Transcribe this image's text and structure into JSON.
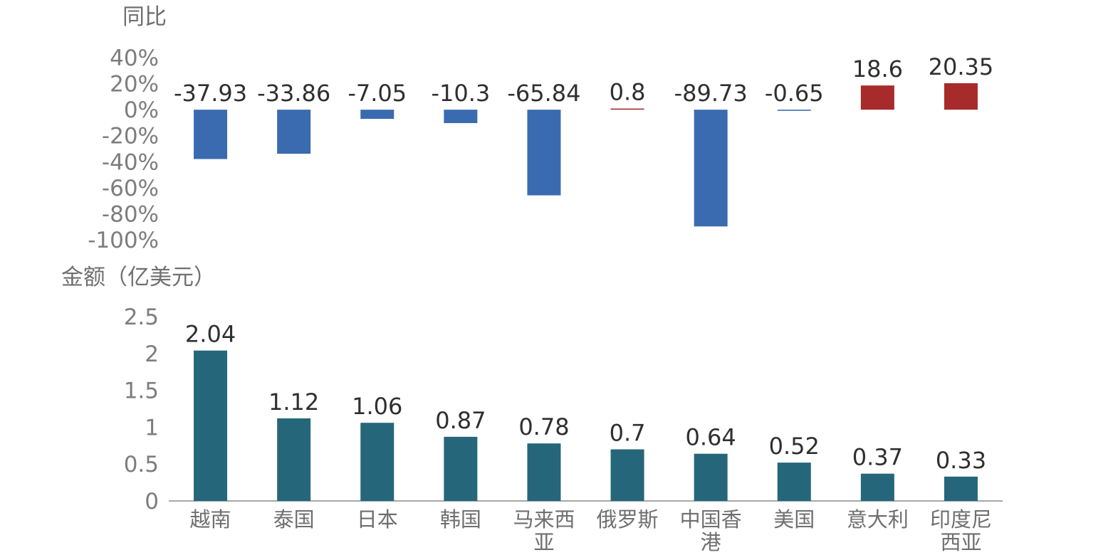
{
  "chart_data": [
    {
      "type": "bar",
      "ylabel": "同比",
      "categories": [
        "越南",
        "泰国",
        "日本",
        "韩国",
        "马来西亚",
        "俄罗斯",
        "中国香港",
        "美国",
        "意大利",
        "印度尼西亚"
      ],
      "values": [
        -37.93,
        -33.86,
        -7.05,
        -10.3,
        -65.84,
        0.8,
        -89.73,
        -0.65,
        18.6,
        20.35
      ],
      "data_labels": [
        "-37.93",
        "-33.86",
        "-7.05",
        "-10.3",
        "-65.84",
        "0.8",
        "-89.73",
        "-0.65",
        "18.6",
        "20.35"
      ],
      "yticks": [
        "40%",
        "20%",
        "0%",
        "-20%",
        "-40%",
        "-60%",
        "-80%",
        "-100%"
      ],
      "ylim": [
        -100,
        40
      ],
      "positive_color": "#a82b2b",
      "negative_color": "#3a6bb0",
      "grid": false
    },
    {
      "type": "bar",
      "ylabel": "金额（亿美元）",
      "categories": [
        "越南",
        "泰国",
        "日本",
        "韩国",
        "马来西亚",
        "俄罗斯",
        "中国香港",
        "美国",
        "意大利",
        "印度尼西亚"
      ],
      "category_lines": [
        [
          "越南"
        ],
        [
          "泰国"
        ],
        [
          "日本"
        ],
        [
          "韩国"
        ],
        [
          "马来西",
          "亚"
        ],
        [
          "俄罗斯"
        ],
        [
          "中国香",
          "港"
        ],
        [
          "美国"
        ],
        [
          "意大利"
        ],
        [
          "印度尼",
          "西亚"
        ]
      ],
      "values": [
        2.04,
        1.12,
        1.06,
        0.87,
        0.78,
        0.7,
        0.64,
        0.52,
        0.37,
        0.33
      ],
      "data_labels": [
        "2.04",
        "1.12",
        "1.06",
        "0.87",
        "0.78",
        "0.7",
        "0.64",
        "0.52",
        "0.37",
        "0.33"
      ],
      "yticks": [
        "2.5",
        "2",
        "1.5",
        "1",
        "0.5",
        "0"
      ],
      "ylim": [
        0,
        2.5
      ],
      "bar_color": "#25667a",
      "grid": false
    }
  ]
}
